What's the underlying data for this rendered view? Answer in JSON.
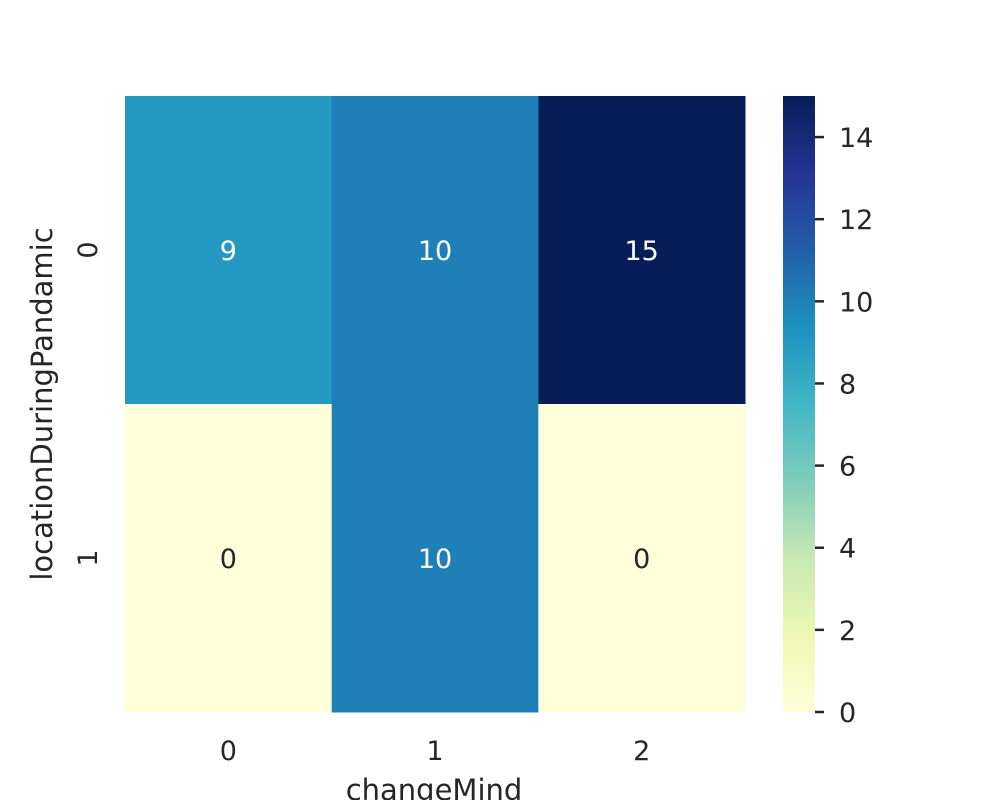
{
  "chart_data": {
    "type": "heatmap",
    "title": "",
    "xlabel": "changeMind",
    "ylabel": "locationDuringPandamic",
    "x_categories": [
      "0",
      "1",
      "2"
    ],
    "y_categories": [
      "0",
      "1"
    ],
    "values": [
      [
        9,
        10,
        15
      ],
      [
        0,
        10,
        0
      ]
    ],
    "colormap": "YlGnBu",
    "colorbar": {
      "vmin": 0,
      "vmax": 15,
      "ticks": [
        0,
        2,
        4,
        6,
        8,
        10,
        12,
        14
      ],
      "position": "right"
    },
    "annotations": true
  }
}
